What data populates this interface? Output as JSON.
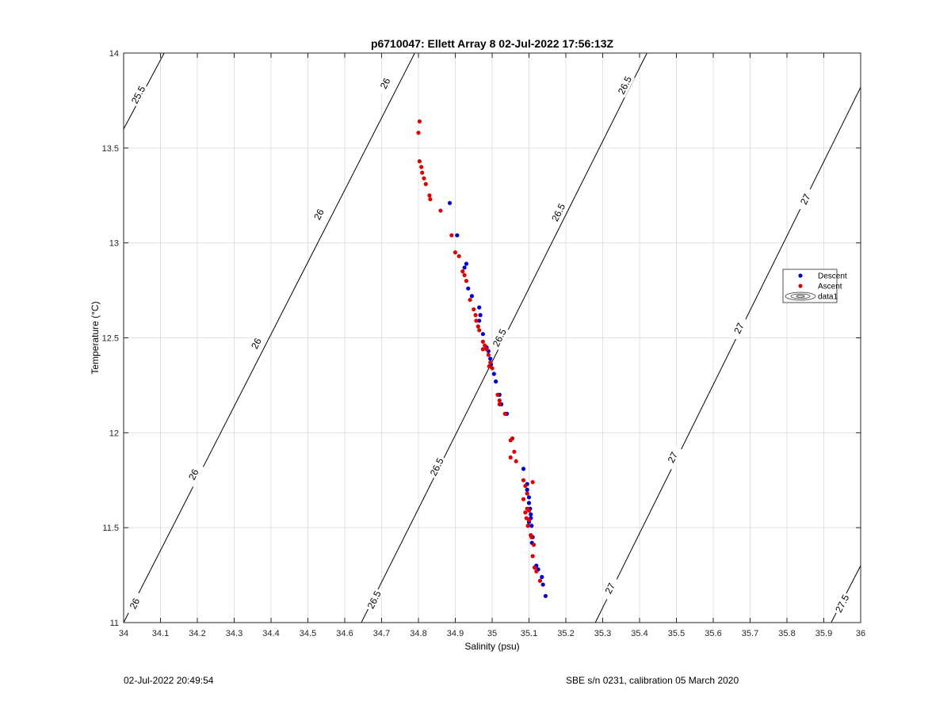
{
  "chart_data": {
    "type": "scatter",
    "title": "p6710047: Ellett Array 8 02-Jul-2022 17:56:13Z",
    "xlabel": "Salinity (psu)",
    "ylabel": "Temperature (°C)",
    "xlim": [
      34,
      36
    ],
    "ylim": [
      11,
      14
    ],
    "x_ticks": [
      "34",
      "34.1",
      "34.2",
      "34.3",
      "34.4",
      "34.5",
      "34.6",
      "34.7",
      "34.8",
      "34.9",
      "35",
      "35.1",
      "35.2",
      "35.3",
      "35.4",
      "35.5",
      "35.6",
      "35.7",
      "35.8",
      "35.9",
      "36"
    ],
    "y_ticks": [
      "11",
      "11.5",
      "12",
      "12.5",
      "13",
      "13.5",
      "14"
    ],
    "grid": true,
    "legend_position": "right",
    "legend": [
      "Descent",
      "Ascent",
      "data1"
    ],
    "colors": {
      "Descent": "#0000cc",
      "Ascent": "#dd0000",
      "contour": "#000000",
      "grid": "#e0e0e0"
    },
    "series": [
      {
        "name": "Descent",
        "points": [
          [
            34.885,
            13.21
          ],
          [
            34.905,
            13.04
          ],
          [
            34.93,
            12.89
          ],
          [
            34.925,
            12.87
          ],
          [
            34.935,
            12.76
          ],
          [
            34.945,
            12.72
          ],
          [
            34.965,
            12.66
          ],
          [
            34.968,
            12.62
          ],
          [
            34.965,
            12.59
          ],
          [
            34.975,
            12.52
          ],
          [
            34.985,
            12.45
          ],
          [
            34.99,
            12.43
          ],
          [
            34.995,
            12.39
          ],
          [
            34.997,
            12.36
          ],
          [
            35.005,
            12.31
          ],
          [
            35.01,
            12.27
          ],
          [
            35.02,
            12.2
          ],
          [
            35.025,
            12.15
          ],
          [
            35.04,
            12.1
          ],
          [
            35.085,
            11.81
          ],
          [
            35.095,
            11.73
          ],
          [
            35.095,
            11.7
          ],
          [
            35.1,
            11.66
          ],
          [
            35.1,
            11.63
          ],
          [
            35.103,
            11.6
          ],
          [
            35.105,
            11.57
          ],
          [
            35.105,
            11.55
          ],
          [
            35.1,
            11.53
          ],
          [
            35.107,
            11.51
          ],
          [
            35.105,
            11.46
          ],
          [
            35.11,
            11.45
          ],
          [
            35.108,
            11.42
          ],
          [
            35.12,
            11.3
          ],
          [
            35.125,
            11.28
          ],
          [
            35.135,
            11.24
          ],
          [
            35.138,
            11.2
          ],
          [
            35.145,
            11.14
          ]
        ]
      },
      {
        "name": "Ascent",
        "points": [
          [
            34.803,
            13.64
          ],
          [
            34.8,
            13.58
          ],
          [
            34.803,
            13.43
          ],
          [
            34.808,
            13.4
          ],
          [
            34.81,
            13.37
          ],
          [
            34.815,
            13.34
          ],
          [
            34.82,
            13.31
          ],
          [
            34.83,
            13.25
          ],
          [
            34.832,
            13.23
          ],
          [
            34.86,
            13.17
          ],
          [
            34.89,
            13.04
          ],
          [
            34.9,
            12.95
          ],
          [
            34.91,
            12.93
          ],
          [
            34.92,
            12.85
          ],
          [
            34.925,
            12.83
          ],
          [
            34.93,
            12.8
          ],
          [
            34.94,
            12.7
          ],
          [
            34.95,
            12.65
          ],
          [
            34.955,
            12.62
          ],
          [
            34.957,
            12.59
          ],
          [
            34.962,
            12.56
          ],
          [
            34.965,
            12.54
          ],
          [
            34.975,
            12.48
          ],
          [
            34.98,
            12.46
          ],
          [
            34.985,
            12.44
          ],
          [
            34.975,
            12.44
          ],
          [
            34.99,
            12.41
          ],
          [
            34.995,
            12.37
          ],
          [
            34.992,
            12.35
          ],
          [
            35.0,
            12.34
          ],
          [
            35.015,
            12.2
          ],
          [
            35.02,
            12.17
          ],
          [
            35.02,
            12.15
          ],
          [
            35.035,
            12.1
          ],
          [
            35.05,
            11.96
          ],
          [
            35.055,
            11.97
          ],
          [
            35.06,
            11.9
          ],
          [
            35.05,
            11.87
          ],
          [
            35.065,
            11.85
          ],
          [
            35.085,
            11.75
          ],
          [
            35.09,
            11.72
          ],
          [
            35.095,
            11.68
          ],
          [
            35.085,
            11.65
          ],
          [
            35.095,
            11.6
          ],
          [
            35.1,
            11.59
          ],
          [
            35.09,
            11.58
          ],
          [
            35.093,
            11.55
          ],
          [
            35.1,
            11.54
          ],
          [
            35.097,
            11.51
          ],
          [
            35.105,
            11.46
          ],
          [
            35.107,
            11.45
          ],
          [
            35.113,
            11.41
          ],
          [
            35.11,
            11.35
          ],
          [
            35.115,
            11.29
          ],
          [
            35.12,
            11.27
          ],
          [
            35.11,
            11.74
          ],
          [
            35.13,
            11.22
          ]
        ]
      }
    ],
    "contours": [
      {
        "level": "25.5",
        "line": [
          [
            34.0,
            13.6
          ],
          [
            34.11,
            14.0
          ]
        ],
        "labels": [
          {
            "text": "25.5",
            "x": 34.04,
            "y": 13.78
          }
        ]
      },
      {
        "level": "26",
        "line": [
          [
            34.0,
            11.0
          ],
          [
            34.79,
            14.0
          ]
        ],
        "labels": [
          {
            "text": "26",
            "x": 34.03,
            "y": 11.1
          },
          {
            "text": "26",
            "x": 34.19,
            "y": 11.78
          },
          {
            "text": "26",
            "x": 34.36,
            "y": 12.47
          },
          {
            "text": "26",
            "x": 34.53,
            "y": 13.15
          },
          {
            "text": "26",
            "x": 34.71,
            "y": 13.84
          }
        ]
      },
      {
        "level": "26.5",
        "line": [
          [
            34.645,
            11.0
          ],
          [
            35.42,
            14.0
          ]
        ],
        "labels": [
          {
            "text": "26.5",
            "x": 34.68,
            "y": 11.12
          },
          {
            "text": "26.5",
            "x": 34.85,
            "y": 11.82
          },
          {
            "text": "26.5",
            "x": 35.02,
            "y": 12.5
          },
          {
            "text": "26.5",
            "x": 35.18,
            "y": 13.16
          },
          {
            "text": "26.5",
            "x": 35.36,
            "y": 13.83
          }
        ]
      },
      {
        "level": "27",
        "line": [
          [
            35.28,
            11.0
          ],
          [
            36.0,
            13.82
          ]
        ],
        "labels": [
          {
            "text": "27",
            "x": 35.32,
            "y": 11.18
          },
          {
            "text": "27",
            "x": 35.49,
            "y": 11.87
          },
          {
            "text": "27",
            "x": 35.67,
            "y": 12.55
          },
          {
            "text": "27",
            "x": 35.85,
            "y": 13.23
          }
        ]
      },
      {
        "level": "27.5",
        "line": [
          [
            35.92,
            11.0
          ],
          [
            36.0,
            11.3
          ]
        ],
        "labels": [
          {
            "text": "27.5",
            "x": 35.95,
            "y": 11.1
          }
        ]
      }
    ]
  },
  "footer": {
    "timestamp": "02-Jul-2022 20:49:54",
    "calibration": "SBE s/n 0231, calibration 05 March 2020"
  }
}
